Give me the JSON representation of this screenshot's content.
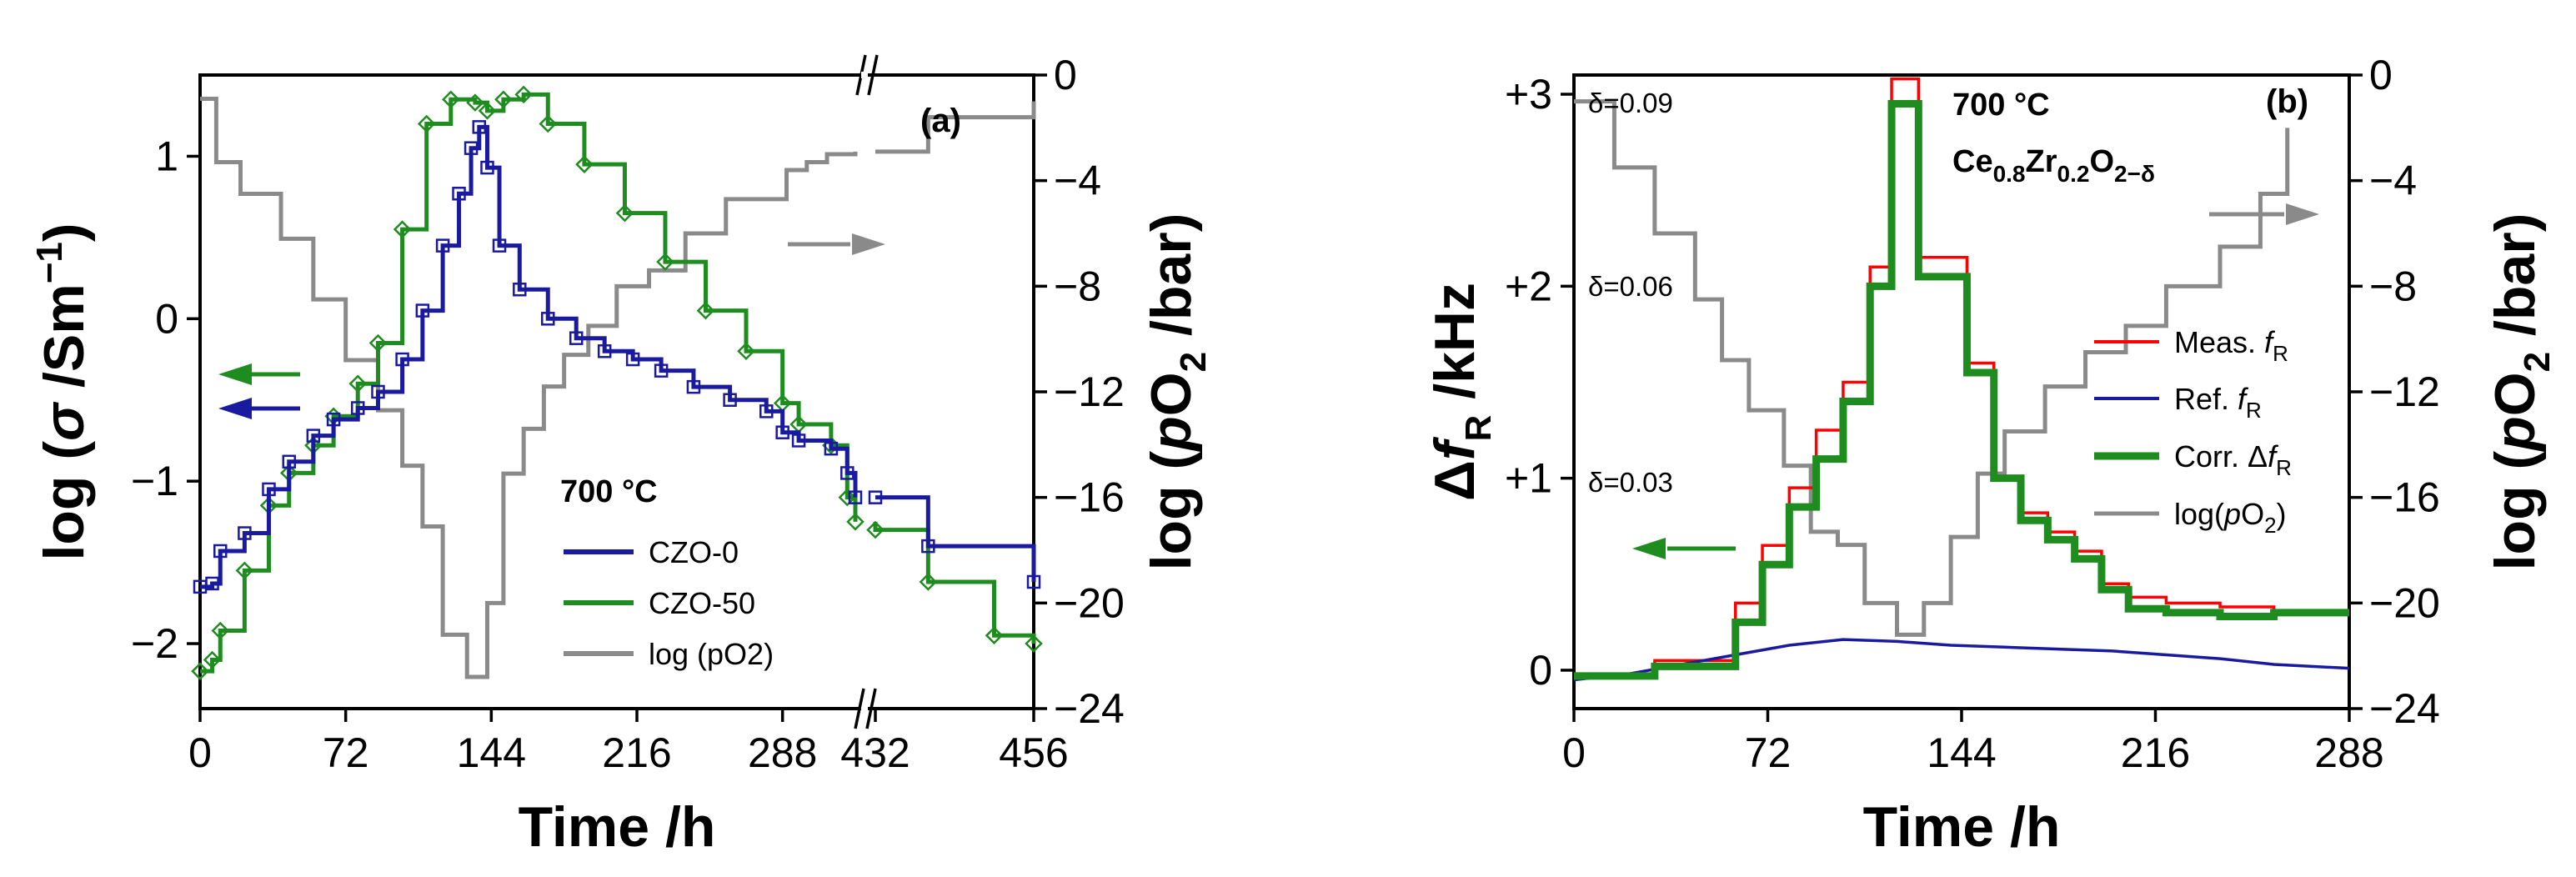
{
  "chart_data": [
    {
      "type": "line",
      "panel_label": "(a)",
      "annotation": "700 °C",
      "xlabel": "Time /h",
      "ylabel": "log (σ /Sm⁻¹)",
      "y2label": "log (pO₂ /bar)",
      "x_ticks": [
        "0",
        "72",
        "144",
        "216",
        "288",
        "432",
        "456"
      ],
      "x_break": "//",
      "ylim": [
        -2.4,
        1.5
      ],
      "y_ticks": [
        "1",
        "0",
        "−1",
        "−2"
      ],
      "y2lim": [
        -24,
        0
      ],
      "y2_ticks": [
        "0",
        "−4",
        "−8",
        "−12",
        "−16",
        "−20",
        "−24"
      ],
      "legend": [
        "CZO-0",
        "CZO-50",
        "log (pO2)"
      ],
      "colors": {
        "CZO-0": "#1a1aa0",
        "CZO-50": "#1e8c1e",
        "log (pO2)": "#8a8a8a"
      },
      "series": [
        {
          "name": "CZO-0",
          "axis": "left",
          "x": [
            0,
            6,
            10,
            22,
            34,
            44,
            56,
            66,
            78,
            88,
            100,
            110,
            120,
            128,
            134,
            138,
            142,
            148,
            158,
            172,
            186,
            200,
            214,
            228,
            244,
            262,
            280,
            288,
            296,
            312,
            320,
            324,
            432,
            440,
            456
          ],
          "y": [
            -1.65,
            -1.63,
            -1.43,
            -1.32,
            -1.05,
            -0.88,
            -0.72,
            -0.62,
            -0.55,
            -0.45,
            -0.25,
            0.05,
            0.45,
            0.77,
            1.05,
            1.18,
            0.93,
            0.45,
            0.18,
            0.0,
            -0.12,
            -0.2,
            -0.25,
            -0.32,
            -0.42,
            -0.5,
            -0.57,
            -0.7,
            -0.75,
            -0.8,
            -0.95,
            -1.1,
            -1.1,
            -1.4,
            -1.62
          ]
        },
        {
          "name": "CZO-50",
          "axis": "left",
          "x": [
            0,
            6,
            10,
            22,
            34,
            44,
            56,
            66,
            78,
            88,
            100,
            112,
            124,
            136,
            142,
            150,
            160,
            172,
            190,
            210,
            230,
            250,
            270,
            288,
            296,
            312,
            320,
            324,
            432,
            440,
            450,
            456
          ],
          "y": [
            -2.17,
            -2.1,
            -1.92,
            -1.55,
            -1.15,
            -0.95,
            -0.78,
            -0.6,
            -0.4,
            -0.15,
            0.55,
            1.2,
            1.35,
            1.33,
            1.28,
            1.35,
            1.38,
            1.2,
            0.95,
            0.65,
            0.35,
            0.05,
            -0.2,
            -0.52,
            -0.65,
            -0.78,
            -1.1,
            -1.25,
            -1.3,
            -1.62,
            -1.95,
            -2.0
          ]
        },
        {
          "name": "log (pO2)",
          "axis": "right",
          "x": [
            0,
            8,
            20,
            40,
            56,
            72,
            88,
            100,
            110,
            120,
            132,
            142,
            150,
            160,
            170,
            180,
            192,
            206,
            222,
            240,
            260,
            290,
            300,
            310,
            324,
            432,
            440,
            456
          ],
          "y": [
            -0.9,
            -3.3,
            -4.5,
            -6.2,
            -8.5,
            -10.8,
            -12.7,
            -14.8,
            -17.1,
            -21.2,
            -22.8,
            -20.0,
            -15.1,
            -13.4,
            -11.8,
            -10.6,
            -9.5,
            -8.0,
            -7.4,
            -6.0,
            -4.7,
            -3.6,
            -3.3,
            -3.0,
            -2.9,
            -2.9,
            -1.6,
            -1.0
          ]
        }
      ]
    },
    {
      "type": "line",
      "panel_label": "(b)",
      "annotation": "700 °C",
      "formula": "Ce0.8Zr0.2O2−δ",
      "xlabel": "Time /h",
      "ylabel": "ΔfR /kHz",
      "y2label": "log (pO₂ /bar)",
      "x_ticks": [
        "0",
        "72",
        "144",
        "216",
        "288"
      ],
      "xlim": [
        0,
        288
      ],
      "ylim": [
        -0.2,
        3.1
      ],
      "y_ticks": [
        "+3",
        "+2",
        "+1",
        "0"
      ],
      "y2lim": [
        -24,
        0
      ],
      "y2_ticks": [
        "0",
        "−4",
        "−8",
        "−12",
        "−16",
        "−20",
        "−24"
      ],
      "delta_labels": [
        "δ=0.09",
        "δ=0.06",
        "δ=0.03"
      ],
      "legend": [
        "Meas. fR",
        "Ref. fR",
        "Corr. ΔfR",
        "log(pO2)"
      ],
      "colors": {
        "Meas. fR": "#ff0000",
        "Ref. fR": "#1a1aa0",
        "Corr. ΔfR": "#1e8c1e",
        "log(pO2)": "#8a8a8a"
      },
      "series": [
        {
          "name": "Meas. fR",
          "x": [
            0,
            30,
            60,
            70,
            80,
            90,
            100,
            110,
            118,
            128,
            136,
            146,
            156,
            166,
            176,
            186,
            196,
            206,
            220,
            240,
            260,
            288
          ],
          "y": [
            -0.03,
            0.05,
            0.35,
            0.65,
            0.95,
            1.25,
            1.5,
            2.1,
            3.08,
            2.15,
            2.15,
            1.6,
            1.0,
            0.82,
            0.72,
            0.62,
            0.45,
            0.38,
            0.35,
            0.33,
            0.3,
            0.3
          ]
        },
        {
          "name": "Ref. fR",
          "x": [
            0,
            20,
            40,
            60,
            80,
            100,
            120,
            140,
            160,
            180,
            200,
            220,
            240,
            260,
            288
          ],
          "y": [
            -0.05,
            -0.02,
            0.03,
            0.08,
            0.13,
            0.16,
            0.15,
            0.13,
            0.12,
            0.11,
            0.1,
            0.08,
            0.06,
            0.03,
            0.01
          ]
        },
        {
          "name": "Corr. ΔfR",
          "x": [
            0,
            30,
            60,
            70,
            80,
            90,
            100,
            110,
            118,
            128,
            136,
            146,
            156,
            166,
            176,
            186,
            196,
            206,
            220,
            240,
            260,
            288
          ],
          "y": [
            -0.03,
            0.02,
            0.25,
            0.55,
            0.85,
            1.1,
            1.4,
            2.0,
            2.95,
            2.05,
            2.05,
            1.55,
            1.0,
            0.78,
            0.68,
            0.58,
            0.42,
            0.32,
            0.3,
            0.28,
            0.3,
            0.3
          ]
        },
        {
          "name": "log(pO2)",
          "axis": "right",
          "x": [
            0,
            15,
            30,
            45,
            55,
            65,
            78,
            88,
            98,
            108,
            120,
            130,
            140,
            150,
            160,
            175,
            190,
            205,
            220,
            240,
            255,
            265
          ],
          "y": [
            -1.0,
            -3.5,
            -6.0,
            -8.5,
            -10.8,
            -12.7,
            -14.8,
            -17.3,
            -17.8,
            -20.0,
            -21.2,
            -20.0,
            -17.5,
            -15.1,
            -13.5,
            -11.8,
            -10.5,
            -9.5,
            -8.0,
            -6.5,
            -4.5,
            -2.0
          ]
        }
      ]
    }
  ]
}
